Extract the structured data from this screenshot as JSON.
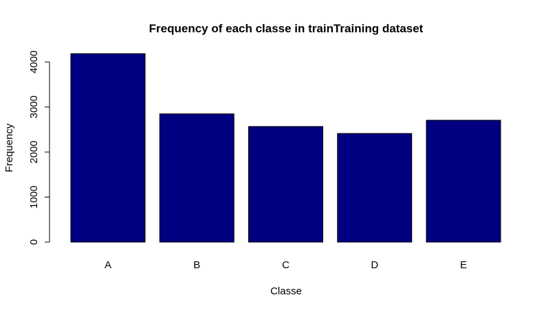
{
  "chart_data": {
    "type": "bar",
    "title": "Frequency of each classe in trainTraining dataset",
    "xlabel": "Classe",
    "ylabel": "Frequency",
    "categories": [
      "A",
      "B",
      "C",
      "D",
      "E"
    ],
    "values": [
      4185,
      2848,
      2567,
      2412,
      2706
    ],
    "ylim": [
      0,
      4185
    ],
    "yticks": [
      0,
      1000,
      2000,
      3000,
      4000
    ],
    "grid": false,
    "legend": "none",
    "bar_color": "#000080",
    "bar_border_color": "#000000"
  }
}
